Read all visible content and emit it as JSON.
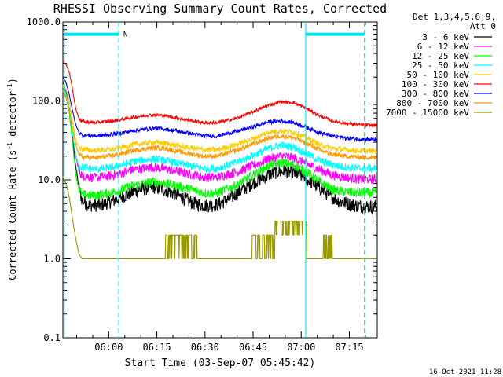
{
  "chart_data": {
    "type": "line",
    "title": "RHESSI Observing Summary Count Rates, Corrected",
    "xlabel": "Start Time (03-Sep-07 05:45:42)",
    "ylabel_parts": [
      "Corrected Count Rate (s",
      "-1",
      " detector",
      "-1",
      ")"
    ],
    "yscale": "log",
    "ylim": [
      0.1,
      1000.0
    ],
    "xlim_minutes": [
      0,
      98
    ],
    "x_ticks": [
      {
        "label": "06:00",
        "min": 14.3
      },
      {
        "label": "06:15",
        "min": 29.3
      },
      {
        "label": "06:30",
        "min": 44.3
      },
      {
        "label": "06:45",
        "min": 59.3
      },
      {
        "label": "07:00",
        "min": 74.3
      },
      {
        "label": "07:15",
        "min": 89.3
      }
    ],
    "y_ticks": [
      {
        "label": "0.1",
        "value": 0.1
      },
      {
        "label": "1.0",
        "value": 1.0
      },
      {
        "label": "10.0",
        "value": 10.0
      },
      {
        "label": "100.0",
        "value": 100.0
      },
      {
        "label": "1000.0",
        "value": 1000.0
      }
    ],
    "legend_title": [
      "Det 1,3,4,5,6,9,",
      "Att 0"
    ],
    "legend_position": "right",
    "series": [
      {
        "name": "3 - 6 keV",
        "color": "#000000",
        "noise": 0.09,
        "points": [
          [
            0,
            170
          ],
          [
            1,
            130
          ],
          [
            2,
            80
          ],
          [
            3,
            35
          ],
          [
            4,
            15
          ],
          [
            5,
            8
          ],
          [
            6,
            5.5
          ],
          [
            8,
            4.8
          ],
          [
            12,
            4.8
          ],
          [
            16,
            5.5
          ],
          [
            20,
            6.5
          ],
          [
            24,
            7.5
          ],
          [
            28,
            8.2
          ],
          [
            32,
            7.5
          ],
          [
            36,
            6.3
          ],
          [
            40,
            5.2
          ],
          [
            44,
            4.7
          ],
          [
            48,
            4.8
          ],
          [
            52,
            5.8
          ],
          [
            56,
            7.5
          ],
          [
            60,
            9.5
          ],
          [
            64,
            11.5
          ],
          [
            67,
            12.8
          ],
          [
            70,
            12.8
          ],
          [
            74,
            11.5
          ],
          [
            78,
            9
          ],
          [
            82,
            6.8
          ],
          [
            86,
            5.4
          ],
          [
            90,
            4.8
          ],
          [
            94,
            4.6
          ],
          [
            98,
            4.6
          ]
        ]
      },
      {
        "name": "6 - 12 keV",
        "color": "#ff00ff",
        "noise": 0.06,
        "points": [
          [
            0,
            160
          ],
          [
            1,
            125
          ],
          [
            2,
            80
          ],
          [
            3,
            40
          ],
          [
            4,
            20
          ],
          [
            5,
            13
          ],
          [
            6,
            11.5
          ],
          [
            10,
            10.6
          ],
          [
            16,
            11.5
          ],
          [
            22,
            13.5
          ],
          [
            28,
            14.5
          ],
          [
            32,
            13.8
          ],
          [
            38,
            12.2
          ],
          [
            44,
            10.8
          ],
          [
            48,
            10.8
          ],
          [
            54,
            12.5
          ],
          [
            60,
            15.5
          ],
          [
            64,
            18.5
          ],
          [
            68,
            20
          ],
          [
            72,
            19
          ],
          [
            76,
            16
          ],
          [
            80,
            13.5
          ],
          [
            84,
            11.5
          ],
          [
            88,
            10.8
          ],
          [
            92,
            10.2
          ],
          [
            98,
            10.2
          ]
        ]
      },
      {
        "name": "12 - 25 keV",
        "color": "#00ff00",
        "noise": 0.06,
        "points": [
          [
            0,
            140
          ],
          [
            1,
            110
          ],
          [
            2,
            70
          ],
          [
            3,
            30
          ],
          [
            4,
            12
          ],
          [
            5,
            7.5
          ],
          [
            6,
            6.5
          ],
          [
            10,
            6.3
          ],
          [
            16,
            7
          ],
          [
            22,
            8.5
          ],
          [
            28,
            9.5
          ],
          [
            32,
            9
          ],
          [
            38,
            8
          ],
          [
            44,
            6.8
          ],
          [
            48,
            6.8
          ],
          [
            54,
            8.5
          ],
          [
            60,
            12
          ],
          [
            64,
            15
          ],
          [
            68,
            16.5
          ],
          [
            72,
            15.5
          ],
          [
            76,
            12.5
          ],
          [
            80,
            9.5
          ],
          [
            84,
            7.5
          ],
          [
            88,
            7
          ],
          [
            92,
            6.8
          ],
          [
            98,
            6.8
          ]
        ]
      },
      {
        "name": "25 - 50 keV",
        "color": "#00ffff",
        "noise": 0.05,
        "points": [
          [
            0,
            150
          ],
          [
            1,
            120
          ],
          [
            2,
            80
          ],
          [
            3,
            40
          ],
          [
            4,
            20
          ],
          [
            5,
            15
          ],
          [
            6,
            14.5
          ],
          [
            10,
            13.5
          ],
          [
            16,
            14.5
          ],
          [
            22,
            17
          ],
          [
            28,
            18.5
          ],
          [
            32,
            17.5
          ],
          [
            38,
            15.5
          ],
          [
            44,
            14
          ],
          [
            48,
            14
          ],
          [
            54,
            16.5
          ],
          [
            60,
            21
          ],
          [
            64,
            25
          ],
          [
            68,
            27.5
          ],
          [
            72,
            26
          ],
          [
            76,
            21.5
          ],
          [
            80,
            17.5
          ],
          [
            84,
            15.5
          ],
          [
            88,
            14.5
          ],
          [
            92,
            14
          ],
          [
            98,
            14
          ]
        ]
      },
      {
        "name": "50 - 100 keV",
        "color": "#ffcc00",
        "noise": 0.035,
        "points": [
          [
            0,
            160
          ],
          [
            1,
            140
          ],
          [
            2,
            100
          ],
          [
            3,
            55
          ],
          [
            4,
            32
          ],
          [
            5,
            26
          ],
          [
            6,
            24.5
          ],
          [
            10,
            23.5
          ],
          [
            16,
            24.5
          ],
          [
            22,
            28
          ],
          [
            28,
            30
          ],
          [
            32,
            29
          ],
          [
            38,
            26
          ],
          [
            44,
            24
          ],
          [
            48,
            24
          ],
          [
            54,
            28
          ],
          [
            60,
            34
          ],
          [
            64,
            40
          ],
          [
            68,
            42
          ],
          [
            72,
            40
          ],
          [
            76,
            34
          ],
          [
            80,
            28
          ],
          [
            84,
            25
          ],
          [
            88,
            24
          ],
          [
            92,
            23.5
          ],
          [
            98,
            23
          ]
        ]
      },
      {
        "name": "100 - 300 keV",
        "color": "#ff0000",
        "noise": 0.02,
        "points": [
          [
            0,
            320
          ],
          [
            1,
            290
          ],
          [
            2,
            230
          ],
          [
            3,
            140
          ],
          [
            4,
            80
          ],
          [
            5,
            60
          ],
          [
            6,
            55
          ],
          [
            10,
            53
          ],
          [
            16,
            56
          ],
          [
            22,
            62
          ],
          [
            28,
            67
          ],
          [
            32,
            65
          ],
          [
            38,
            58
          ],
          [
            44,
            53
          ],
          [
            48,
            53
          ],
          [
            54,
            60
          ],
          [
            60,
            75
          ],
          [
            64,
            88
          ],
          [
            68,
            98
          ],
          [
            72,
            95
          ],
          [
            76,
            80
          ],
          [
            80,
            65
          ],
          [
            84,
            56
          ],
          [
            88,
            52
          ],
          [
            92,
            50
          ],
          [
            98,
            49
          ]
        ]
      },
      {
        "name": "300 - 800 keV",
        "color": "#0000ff",
        "noise": 0.025,
        "points": [
          [
            0,
            200
          ],
          [
            1,
            170
          ],
          [
            2,
            120
          ],
          [
            3,
            75
          ],
          [
            4,
            50
          ],
          [
            5,
            40
          ],
          [
            6,
            37
          ],
          [
            10,
            36
          ],
          [
            16,
            38
          ],
          [
            22,
            42
          ],
          [
            28,
            45
          ],
          [
            32,
            44
          ],
          [
            38,
            40
          ],
          [
            44,
            36
          ],
          [
            48,
            36
          ],
          [
            54,
            41
          ],
          [
            60,
            48
          ],
          [
            64,
            54
          ],
          [
            68,
            56
          ],
          [
            72,
            53
          ],
          [
            76,
            46
          ],
          [
            80,
            40
          ],
          [
            84,
            36
          ],
          [
            88,
            34
          ],
          [
            92,
            33
          ],
          [
            98,
            32
          ]
        ]
      },
      {
        "name": "800 - 7000 keV",
        "color": "#ff9900",
        "noise": 0.03,
        "points": [
          [
            0,
            130
          ],
          [
            1,
            110
          ],
          [
            2,
            75
          ],
          [
            3,
            45
          ],
          [
            4,
            28
          ],
          [
            5,
            21
          ],
          [
            6,
            19.5
          ],
          [
            10,
            19
          ],
          [
            16,
            20.5
          ],
          [
            22,
            23.5
          ],
          [
            28,
            25.5
          ],
          [
            32,
            25
          ],
          [
            38,
            22
          ],
          [
            44,
            20
          ],
          [
            48,
            20
          ],
          [
            54,
            23.5
          ],
          [
            60,
            29
          ],
          [
            64,
            34
          ],
          [
            68,
            36
          ],
          [
            72,
            34
          ],
          [
            76,
            29
          ],
          [
            80,
            24
          ],
          [
            84,
            21
          ],
          [
            88,
            20
          ],
          [
            92,
            19.5
          ],
          [
            98,
            19
          ]
        ]
      },
      {
        "name": "7000 - 15000 keV",
        "color": "#999900",
        "noise": 0,
        "points": [
          [
            0,
            11
          ],
          [
            1,
            9
          ],
          [
            2,
            6
          ],
          [
            3,
            3.2
          ],
          [
            4,
            1.8
          ],
          [
            5,
            1.15
          ],
          [
            6,
            1
          ],
          [
            98,
            1
          ]
        ]
      }
    ],
    "annotations": {
      "n_marker": "N",
      "timestamp": "16-Oct-2021 11:28",
      "solid_vlines_min": [
        0.4,
        75.7
      ],
      "dashed_vlines_min": [
        17.4,
        94.0
      ],
      "bars_min": [
        [
          0.4,
          17.4
        ],
        [
          75.7,
          94.0
        ]
      ],
      "bar_level": 700
    }
  }
}
